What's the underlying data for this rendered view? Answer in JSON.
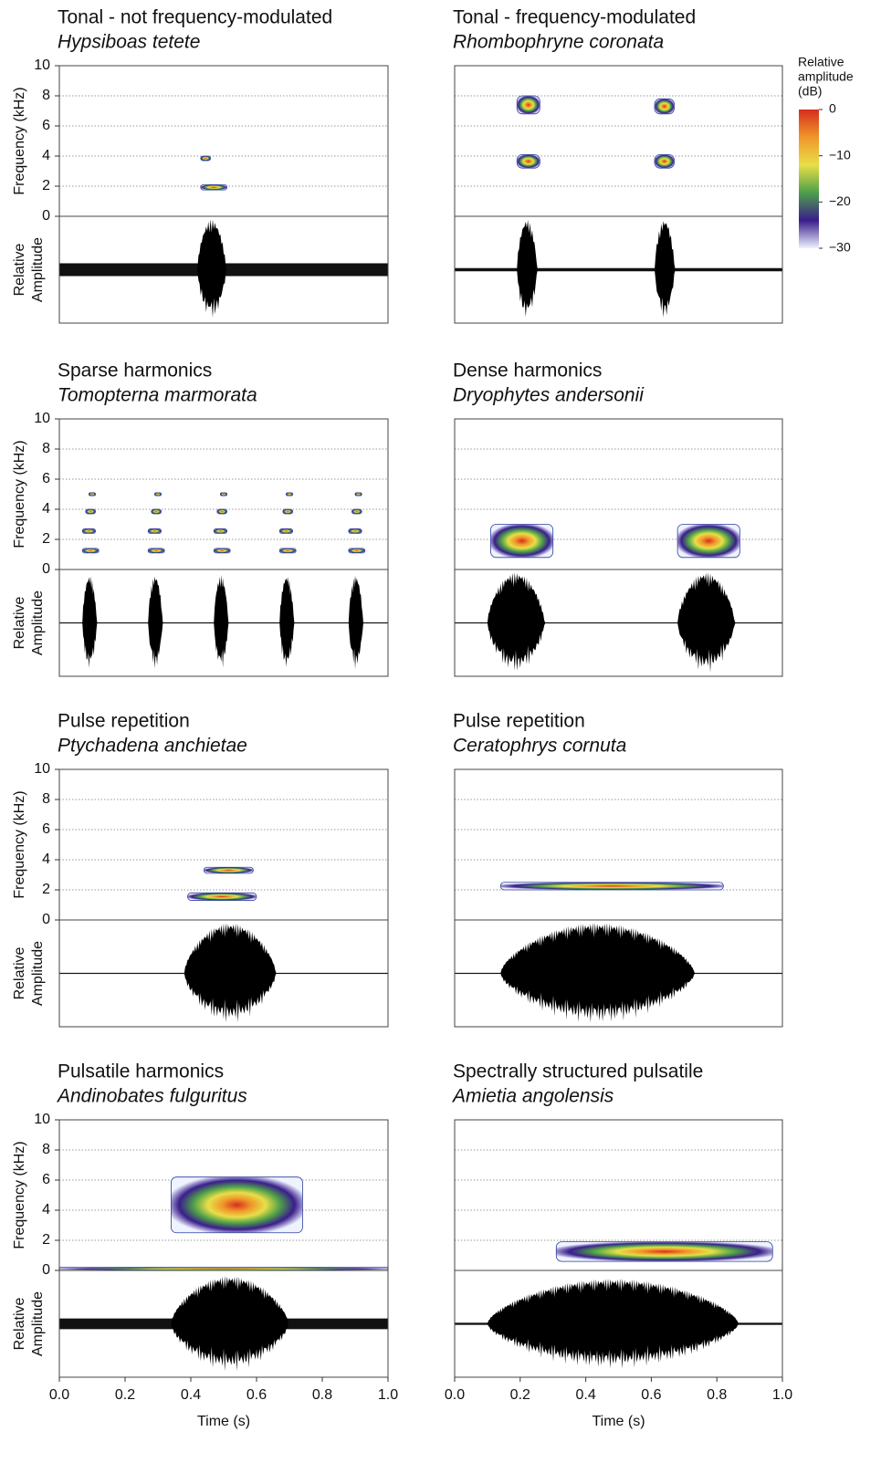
{
  "chart_data": [
    {
      "type": "spectrogram",
      "title": "Tonal - not frequency-modulated",
      "subtitle": "Hypsiboas tetete",
      "ylabel": "Frequency (kHz)",
      "amp_label": [
        "Relative",
        "Amplitude"
      ],
      "xlim": [
        0,
        1
      ],
      "ylim": [
        0,
        10
      ],
      "yticks": [
        0,
        2,
        4,
        6,
        8,
        10
      ],
      "tick_labels": true,
      "notes": [
        {
          "t": [
            0.43,
            0.51
          ],
          "f": [
            1.75,
            2.1
          ]
        },
        {
          "t": [
            0.43,
            0.46
          ],
          "f": [
            3.7,
            4.0
          ]
        }
      ],
      "bursts": [
        {
          "t": [
            0.42,
            0.52
          ],
          "amp": 0.95
        }
      ],
      "noise": 0.12
    },
    {
      "type": "spectrogram",
      "title": "Tonal - frequency-modulated",
      "subtitle": "Rhombophryne coronata",
      "xlim": [
        0,
        1
      ],
      "ylim": [
        0,
        10
      ],
      "yticks": [
        0,
        2,
        4,
        6,
        8,
        10
      ],
      "tick_labels": false,
      "notes": [
        {
          "t": [
            0.19,
            0.26
          ],
          "f": [
            3.2,
            4.1
          ]
        },
        {
          "t": [
            0.19,
            0.26
          ],
          "f": [
            6.8,
            8.0
          ]
        },
        {
          "t": [
            0.61,
            0.67
          ],
          "f": [
            3.2,
            4.1
          ]
        },
        {
          "t": [
            0.61,
            0.67
          ],
          "f": [
            6.8,
            7.8
          ]
        }
      ],
      "bursts": [
        {
          "t": [
            0.19,
            0.26
          ],
          "amp": 0.95
        },
        {
          "t": [
            0.61,
            0.68
          ],
          "amp": 0.95
        }
      ],
      "noise": 0.03,
      "colorbar": {
        "label": [
          "Relative",
          "amplitude",
          "(dB)"
        ],
        "lim": [
          -30,
          0
        ],
        "ticks": [
          0,
          {
            "value": -10,
            "label": "−10"
          },
          {
            "value": -20,
            "label": "−20"
          },
          {
            "value": -30,
            "label": "−30"
          }
        ],
        "colors": [
          "#eef3ff",
          "#3a1d8c",
          "#4e9f4a",
          "#e8df48",
          "#f0962a",
          "#d62d1f"
        ]
      }
    },
    {
      "type": "spectrogram",
      "title": "Sparse harmonics",
      "subtitle": "Tomopterna marmorata",
      "ylabel": "Frequency (kHz)",
      "amp_label": [
        "Relative",
        "Amplitude"
      ],
      "xlim": [
        0,
        1
      ],
      "ylim": [
        0,
        10
      ],
      "yticks": [
        0,
        2,
        4,
        6,
        8,
        10
      ],
      "tick_labels": true,
      "notes": [
        {
          "t": [
            0.07,
            0.12
          ],
          "f": [
            1.1,
            1.4
          ]
        },
        {
          "t": [
            0.07,
            0.11
          ],
          "f": [
            2.4,
            2.7
          ]
        },
        {
          "t": [
            0.08,
            0.11
          ],
          "f": [
            3.7,
            4.0
          ]
        },
        {
          "t": [
            0.09,
            0.11
          ],
          "f": [
            4.9,
            5.1
          ]
        },
        {
          "t": [
            0.27,
            0.32
          ],
          "f": [
            1.1,
            1.4
          ]
        },
        {
          "t": [
            0.27,
            0.31
          ],
          "f": [
            2.4,
            2.7
          ]
        },
        {
          "t": [
            0.28,
            0.31
          ],
          "f": [
            3.7,
            4.0
          ]
        },
        {
          "t": [
            0.29,
            0.31
          ],
          "f": [
            4.9,
            5.1
          ]
        },
        {
          "t": [
            0.47,
            0.52
          ],
          "f": [
            1.1,
            1.4
          ]
        },
        {
          "t": [
            0.47,
            0.51
          ],
          "f": [
            2.4,
            2.7
          ]
        },
        {
          "t": [
            0.48,
            0.51
          ],
          "f": [
            3.7,
            4.0
          ]
        },
        {
          "t": [
            0.49,
            0.51
          ],
          "f": [
            4.9,
            5.1
          ]
        },
        {
          "t": [
            0.67,
            0.72
          ],
          "f": [
            1.1,
            1.4
          ]
        },
        {
          "t": [
            0.67,
            0.71
          ],
          "f": [
            2.4,
            2.7
          ]
        },
        {
          "t": [
            0.68,
            0.71
          ],
          "f": [
            3.7,
            4.0
          ]
        },
        {
          "t": [
            0.69,
            0.71
          ],
          "f": [
            4.9,
            5.1
          ]
        },
        {
          "t": [
            0.88,
            0.93
          ],
          "f": [
            1.1,
            1.4
          ]
        },
        {
          "t": [
            0.88,
            0.92
          ],
          "f": [
            2.4,
            2.7
          ]
        },
        {
          "t": [
            0.89,
            0.92
          ],
          "f": [
            3.7,
            4.0
          ]
        },
        {
          "t": [
            0.9,
            0.92
          ],
          "f": [
            4.9,
            5.1
          ]
        }
      ],
      "bursts": [
        {
          "t": [
            0.07,
            0.12
          ],
          "amp": 0.9
        },
        {
          "t": [
            0.27,
            0.32
          ],
          "amp": 0.9
        },
        {
          "t": [
            0.47,
            0.52
          ],
          "amp": 0.9
        },
        {
          "t": [
            0.67,
            0.72
          ],
          "amp": 0.9
        },
        {
          "t": [
            0.88,
            0.93
          ],
          "amp": 0.9
        }
      ],
      "noise": 0.01
    },
    {
      "type": "spectrogram",
      "title": "Dense harmonics",
      "subtitle": "Dryophytes andersonii",
      "xlim": [
        0,
        1
      ],
      "ylim": [
        0,
        10
      ],
      "yticks": [
        0,
        2,
        4,
        6,
        8,
        10
      ],
      "tick_labels": false,
      "notes": [
        {
          "t": [
            0.11,
            0.3
          ],
          "f": [
            0.8,
            3.0
          ]
        },
        {
          "t": [
            0.68,
            0.87
          ],
          "f": [
            0.8,
            3.0
          ]
        }
      ],
      "bursts": [
        {
          "t": [
            0.1,
            0.3
          ],
          "amp": 0.95
        },
        {
          "t": [
            0.68,
            0.88
          ],
          "amp": 0.95
        }
      ],
      "noise": 0.01
    },
    {
      "type": "spectrogram",
      "title": "Pulse repetition",
      "subtitle": "Ptychadena anchietae",
      "ylabel": "Frequency (kHz)",
      "amp_label": [
        "Relative",
        "Amplitude"
      ],
      "xlim": [
        0,
        1
      ],
      "ylim": [
        0,
        10
      ],
      "yticks": [
        0,
        2,
        4,
        6,
        8,
        10
      ],
      "tick_labels": true,
      "notes": [
        {
          "t": [
            0.39,
            0.6
          ],
          "f": [
            1.3,
            1.8
          ]
        },
        {
          "t": [
            0.44,
            0.59
          ],
          "f": [
            3.1,
            3.5
          ]
        }
      ],
      "bursts": [
        {
          "t": [
            0.38,
            0.7
          ],
          "amp": 0.95
        }
      ],
      "noise": 0.01
    },
    {
      "type": "spectrogram",
      "title": "Pulse repetition",
      "subtitle": "Ceratophrys cornuta",
      "xlim": [
        0,
        1
      ],
      "ylim": [
        0,
        10
      ],
      "yticks": [
        0,
        2,
        4,
        6,
        8,
        10
      ],
      "tick_labels": false,
      "notes": [
        {
          "t": [
            0.14,
            0.82
          ],
          "f": [
            2.0,
            2.5
          ]
        }
      ],
      "bursts": [
        {
          "t": [
            0.14,
            0.82
          ],
          "amp": 0.95
        }
      ],
      "noise": 0.01
    },
    {
      "type": "spectrogram",
      "title": "Pulsatile harmonics",
      "subtitle": "Andinobates fulguritus",
      "ylabel": "Frequency (kHz)",
      "amp_label": [
        "Relative",
        "Amplitude"
      ],
      "xlim": [
        0,
        1
      ],
      "ylim": [
        0,
        10
      ],
      "yticks": [
        0,
        2,
        4,
        6,
        8,
        10
      ],
      "tick_labels": true,
      "xticks": [
        {
          "value": 0,
          "label": "0.0"
        },
        0.2,
        0.4,
        0.6,
        0.8,
        {
          "value": 1,
          "label": "1.0"
        }
      ],
      "xlabel": "Time (s)",
      "notes": [
        {
          "t": [
            0.34,
            0.74
          ],
          "f": [
            2.5,
            6.2
          ]
        },
        {
          "t": [
            0,
            1
          ],
          "f": [
            0,
            0.2
          ]
        }
      ],
      "bursts": [
        {
          "t": [
            0.34,
            0.75
          ],
          "amp": 0.9
        }
      ],
      "noise": 0.1
    },
    {
      "type": "spectrogram",
      "title": "Spectrally structured pulsatile",
      "subtitle": "Amietia angolensis",
      "xlim": [
        0,
        1
      ],
      "ylim": [
        0,
        10
      ],
      "yticks": [
        0,
        2,
        4,
        6,
        8,
        10
      ],
      "tick_labels": false,
      "xticks": [
        {
          "value": 0,
          "label": "0.0"
        },
        0.2,
        0.4,
        0.6,
        0.8,
        {
          "value": 1,
          "label": "1.0"
        }
      ],
      "xlabel": "Time (s)",
      "notes": [
        {
          "t": [
            0.31,
            0.97
          ],
          "f": [
            0.6,
            1.9
          ]
        }
      ],
      "bursts": [
        {
          "t": [
            0.1,
            0.98
          ],
          "amp": 0.85
        }
      ],
      "noise": 0.02
    }
  ]
}
